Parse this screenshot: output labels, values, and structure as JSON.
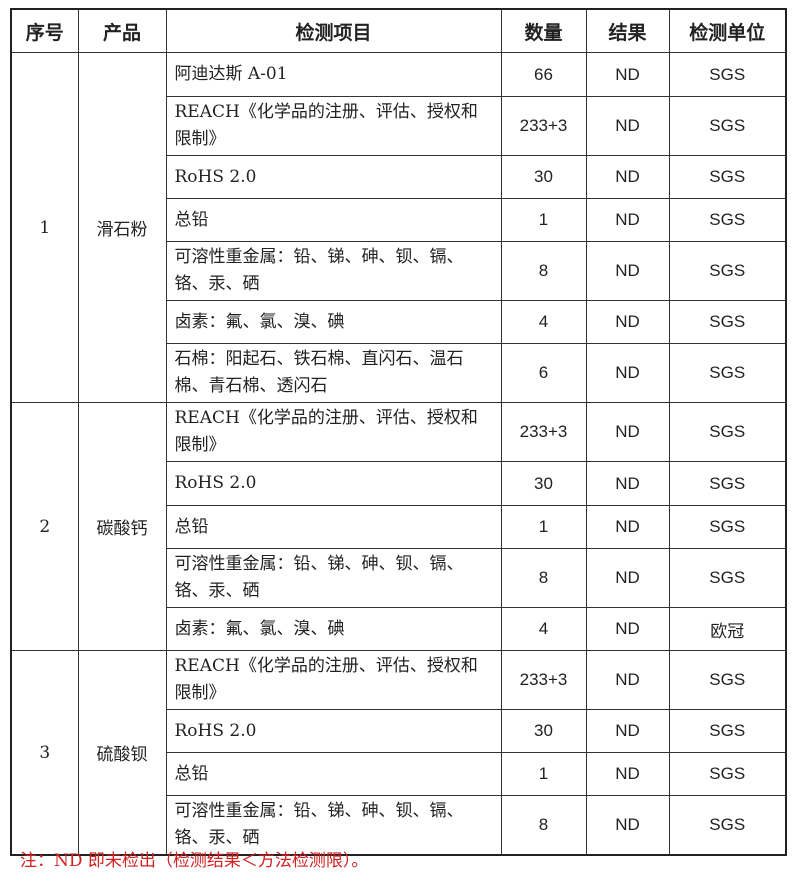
{
  "headers": [
    "序号",
    "产品",
    "检测项目",
    "数量",
    "结果",
    "检测单位"
  ],
  "groups": [
    {
      "no": "1",
      "product": "滑石粉",
      "rows": [
        {
          "item": "阿迪达斯 A-01",
          "qty": "66",
          "result": "ND",
          "unit": "SGS"
        },
        {
          "item": "REACH《化学品的注册、评估、授权和限制》",
          "qty": "233+3",
          "result": "ND",
          "unit": "SGS"
        },
        {
          "item": "RoHS 2.0",
          "qty": "30",
          "result": "ND",
          "unit": "SGS"
        },
        {
          "item": "总铅",
          "qty": "1",
          "result": "ND",
          "unit": "SGS"
        },
        {
          "item": "可溶性重金属：铅、锑、砷、钡、镉、铬、汞、硒",
          "qty": "8",
          "result": "ND",
          "unit": "SGS"
        },
        {
          "item": "卤素：氟、氯、溴、碘",
          "qty": "4",
          "result": "ND",
          "unit": "SGS"
        },
        {
          "item": "石棉：阳起石、铁石棉、直闪石、温石棉、青石棉、透闪石",
          "qty": "6",
          "result": "ND",
          "unit": "SGS"
        }
      ]
    },
    {
      "no": "2",
      "product": "碳酸钙",
      "rows": [
        {
          "item": "REACH《化学品的注册、评估、授权和限制》",
          "qty": "233+3",
          "result": "ND",
          "unit": "SGS"
        },
        {
          "item": "RoHS 2.0",
          "qty": "30",
          "result": "ND",
          "unit": "SGS"
        },
        {
          "item": "总铅",
          "qty": "1",
          "result": "ND",
          "unit": "SGS"
        },
        {
          "item": "可溶性重金属：铅、锑、砷、钡、镉、铬、汞、硒",
          "qty": "8",
          "result": "ND",
          "unit": "SGS"
        },
        {
          "item": "卤素：氟、氯、溴、碘",
          "qty": "4",
          "result": "ND",
          "unit": "欧冠"
        }
      ]
    },
    {
      "no": "3",
      "product": "硫酸钡",
      "rows": [
        {
          "item": "REACH《化学品的注册、评估、授权和限制》",
          "qty": "233+3",
          "result": "ND",
          "unit": "SGS"
        },
        {
          "item": "RoHS 2.0",
          "qty": "30",
          "result": "ND",
          "unit": "SGS"
        },
        {
          "item": "总铅",
          "qty": "1",
          "result": "ND",
          "unit": "SGS"
        },
        {
          "item": "可溶性重金属：铅、锑、砷、钡、镉、铬、汞、硒",
          "qty": "8",
          "result": "ND",
          "unit": "SGS"
        }
      ]
    }
  ],
  "note": "注：ND 即未检出（检测结果＜方法检测限）。",
  "colors": {
    "note": "#d21f1f",
    "border": "#333333"
  }
}
